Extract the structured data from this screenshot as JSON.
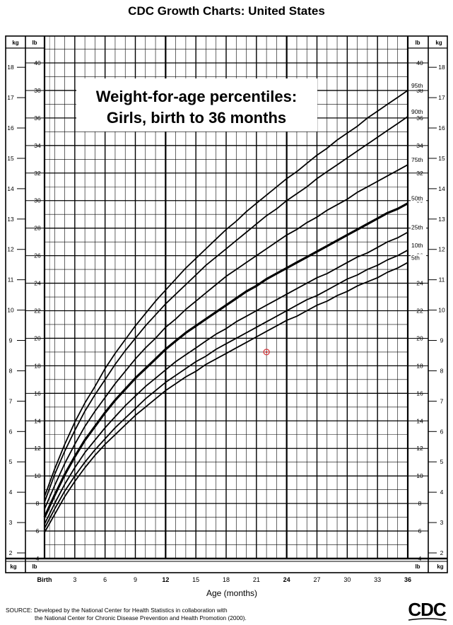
{
  "header": {
    "title": "CDC Growth Charts: United States"
  },
  "chart_data": {
    "type": "line",
    "title": "Weight-for-age percentiles:",
    "subtitle": "Girls, birth to 36 months",
    "xlabel": "Age (months)",
    "x_unit_label": "Age (months)",
    "xlim": [
      0,
      36
    ],
    "x_tick_labels": [
      {
        "x": 0,
        "label": "Birth"
      },
      {
        "x": 3,
        "label": "3"
      },
      {
        "x": 6,
        "label": "6"
      },
      {
        "x": 9,
        "label": "9"
      },
      {
        "x": 12,
        "label": "12"
      },
      {
        "x": 15,
        "label": "15"
      },
      {
        "x": 18,
        "label": "18"
      },
      {
        "x": 21,
        "label": "21"
      },
      {
        "x": 24,
        "label": "24"
      },
      {
        "x": 27,
        "label": "27"
      },
      {
        "x": 30,
        "label": "30"
      },
      {
        "x": 33,
        "label": "33"
      },
      {
        "x": 36,
        "label": "36"
      }
    ],
    "ylim_lb": [
      4,
      40
    ],
    "ylim_kg": [
      1.8144,
      18.1437
    ],
    "y_lb_ticks": [
      4,
      6,
      8,
      10,
      12,
      14,
      16,
      18,
      20,
      22,
      24,
      26,
      28,
      30,
      32,
      34,
      36,
      38,
      40
    ],
    "y_kg_ticks": [
      2,
      3,
      4,
      5,
      6,
      7,
      8,
      9,
      10,
      11,
      12,
      13,
      14,
      15,
      16,
      17,
      18
    ],
    "y_left_unit_kg": "kg",
    "y_left_unit_lb": "lb",
    "y_right_unit_lb": "lb",
    "y_right_unit_kg": "kg",
    "grid": true,
    "x": [
      0,
      1,
      2,
      3,
      4,
      5,
      6,
      7,
      8,
      9,
      10,
      11,
      12,
      13,
      14,
      15,
      16,
      17,
      18,
      19,
      20,
      21,
      22,
      23,
      24,
      25,
      26,
      27,
      28,
      29,
      30,
      31,
      32,
      33,
      34,
      35,
      36
    ],
    "series": [
      {
        "name": "95th",
        "values": [
          8.5,
          10.5,
          12.3,
          13.9,
          15.3,
          16.5,
          17.8,
          18.9,
          19.9,
          20.9,
          21.8,
          22.7,
          23.5,
          24.3,
          25.1,
          25.8,
          26.5,
          27.2,
          27.9,
          28.5,
          29.2,
          29.8,
          30.4,
          31.0,
          31.6,
          32.1,
          32.7,
          33.3,
          33.8,
          34.4,
          34.9,
          35.4,
          36.0,
          36.5,
          37.0,
          37.5,
          38.0
        ]
      },
      {
        "name": "90th",
        "values": [
          8.1,
          10.1,
          11.8,
          13.3,
          14.7,
          15.9,
          17.0,
          18.1,
          19.1,
          20.0,
          20.9,
          21.7,
          22.5,
          23.2,
          23.9,
          24.6,
          25.3,
          25.9,
          26.5,
          27.1,
          27.7,
          28.3,
          28.9,
          29.4,
          30.0,
          30.5,
          31.0,
          31.6,
          32.1,
          32.6,
          33.1,
          33.6,
          34.1,
          34.6,
          35.1,
          35.6,
          36.1
        ]
      },
      {
        "name": "75th",
        "values": [
          7.6,
          9.3,
          10.9,
          12.3,
          13.6,
          14.7,
          15.7,
          16.7,
          17.6,
          18.5,
          19.3,
          20.0,
          20.8,
          21.4,
          22.1,
          22.7,
          23.3,
          23.9,
          24.5,
          25.0,
          25.5,
          26.0,
          26.5,
          27.0,
          27.5,
          27.9,
          28.4,
          28.8,
          29.3,
          29.7,
          30.1,
          30.6,
          31.0,
          31.4,
          31.8,
          32.2,
          32.6
        ]
      },
      {
        "name": "50th",
        "values": [
          7.0,
          8.6,
          10.1,
          11.4,
          12.6,
          13.6,
          14.6,
          15.5,
          16.3,
          17.1,
          17.8,
          18.5,
          19.2,
          19.8,
          20.4,
          20.9,
          21.4,
          21.9,
          22.4,
          22.9,
          23.4,
          23.8,
          24.3,
          24.7,
          25.1,
          25.5,
          25.9,
          26.3,
          26.7,
          27.1,
          27.5,
          27.9,
          28.3,
          28.7,
          29.1,
          29.4,
          29.8
        ]
      },
      {
        "name": "25th",
        "values": [
          6.5,
          8.0,
          9.4,
          10.6,
          11.7,
          12.6,
          13.5,
          14.3,
          15.1,
          15.8,
          16.5,
          17.1,
          17.7,
          18.3,
          18.8,
          19.3,
          19.8,
          20.3,
          20.7,
          21.2,
          21.6,
          22.0,
          22.4,
          22.8,
          23.2,
          23.6,
          24.0,
          24.4,
          24.7,
          25.1,
          25.5,
          25.9,
          26.2,
          26.6,
          27.0,
          27.3,
          27.7
        ]
      },
      {
        "name": "10th",
        "values": [
          6.2,
          7.6,
          8.9,
          10.0,
          11.0,
          11.9,
          12.7,
          13.5,
          14.2,
          14.9,
          15.6,
          16.2,
          16.8,
          17.3,
          17.8,
          18.3,
          18.7,
          19.2,
          19.6,
          20.0,
          20.4,
          20.8,
          21.2,
          21.6,
          22.0,
          22.4,
          22.8,
          23.1,
          23.5,
          23.9,
          24.3,
          24.6,
          25.0,
          25.3,
          25.7,
          26.0,
          26.4
        ]
      },
      {
        "name": "5th",
        "values": [
          5.9,
          7.2,
          8.5,
          9.6,
          10.6,
          11.5,
          12.3,
          13.0,
          13.7,
          14.4,
          15.0,
          15.6,
          16.2,
          16.7,
          17.2,
          17.6,
          18.1,
          18.5,
          18.9,
          19.3,
          19.7,
          20.1,
          20.5,
          20.9,
          21.3,
          21.6,
          22.0,
          22.4,
          22.7,
          23.1,
          23.4,
          23.8,
          24.1,
          24.4,
          24.8,
          25.1,
          25.5
        ]
      }
    ],
    "marker": {
      "x": 22,
      "y": 19.0,
      "color": "#d9282d"
    }
  },
  "footer": {
    "source_line1": "SOURCE: Developed by the National Center for Health Statistics in collaboration with",
    "source_line2": "the National Center for Chronic Disease Prevention and Health Promotion (2000).",
    "logo_text": "CDC"
  }
}
